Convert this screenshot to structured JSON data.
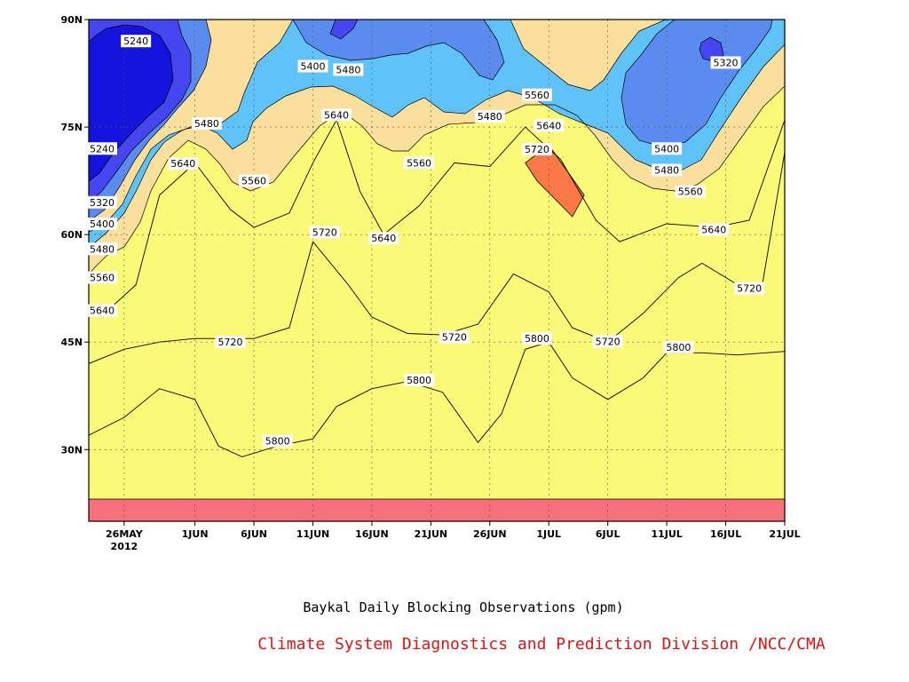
{
  "chart_data": {
    "type": "heatmap",
    "title": "Baykal Daily Blocking Observations (gpm)",
    "credit": "Climate System Diagnostics and Prediction Division /NCC/CMA",
    "x_axis": {
      "type": "date",
      "range": [
        "2012-05-23",
        "2012-07-21"
      ],
      "ticks": [
        {
          "date": "2012-05-26",
          "label": "26MAY",
          "sublabel": "2012"
        },
        {
          "date": "2012-06-01",
          "label": "1JUN"
        },
        {
          "date": "2012-06-06",
          "label": "6JUN"
        },
        {
          "date": "2012-06-11",
          "label": "11JUN"
        },
        {
          "date": "2012-06-16",
          "label": "16JUN"
        },
        {
          "date": "2012-06-21",
          "label": "21JUN"
        },
        {
          "date": "2012-06-26",
          "label": "26JUN"
        },
        {
          "date": "2012-07-01",
          "label": "1JUL"
        },
        {
          "date": "2012-07-06",
          "label": "6JUL"
        },
        {
          "date": "2012-07-11",
          "label": "11JUL"
        },
        {
          "date": "2012-07-16",
          "label": "16JUL"
        },
        {
          "date": "2012-07-21",
          "label": "21JUL"
        }
      ]
    },
    "y_axis": {
      "range": [
        20,
        90
      ],
      "ticks": [
        {
          "value": 30,
          "label": "30N"
        },
        {
          "value": 45,
          "label": "45N"
        },
        {
          "value": 60,
          "label": "60N"
        },
        {
          "value": 75,
          "label": "75N"
        },
        {
          "value": 90,
          "label": "90N"
        }
      ]
    },
    "grid": true,
    "contour_levels": [
      5240,
      5320,
      5400,
      5480,
      5560,
      5640,
      5720,
      5800
    ],
    "colors": {
      "below_5240": "#1414dc",
      "5240_5320": "#4646f0",
      "5320_5400": "#5a8cf0",
      "5400_5480": "#5fc3fa",
      "5480_5560": "#fafa78",
      "5560_5640": "#fae09c",
      "5640_5720": "#faa06e",
      "5720_5800": "#fa7846",
      "above_5800": "#f5707a"
    },
    "contours": [
      {
        "level": 5800,
        "points": [
          [
            "2012-05-23",
            32.0
          ],
          [
            "2012-05-26",
            34.5
          ],
          [
            "2012-05-29",
            38.5
          ],
          [
            "2012-06-01",
            37.0
          ],
          [
            "2012-06-03",
            30.5
          ],
          [
            "2012-06-05",
            29.0
          ],
          [
            "2012-06-08",
            30.5
          ],
          [
            "2012-06-11",
            31.5
          ],
          [
            "2012-06-13",
            36.0
          ],
          [
            "2012-06-16",
            38.5
          ],
          [
            "2012-06-19",
            39.5
          ],
          [
            "2012-06-22",
            38.0
          ],
          [
            "2012-06-25",
            31.0
          ],
          [
            "2012-06-27",
            35.0
          ],
          [
            "2012-06-29",
            44.0
          ],
          [
            "2012-07-01",
            45.0
          ],
          [
            "2012-07-03",
            40.0
          ],
          [
            "2012-07-06",
            37.0
          ],
          [
            "2012-07-09",
            40.0
          ],
          [
            "2012-07-11",
            43.5
          ],
          [
            "2012-07-14",
            43.5
          ],
          [
            "2012-07-17",
            43.2
          ],
          [
            "2012-07-21",
            43.7
          ]
        ],
        "labels": [
          {
            "date": "2012-06-08",
            "lat": 31.2,
            "text": "5800"
          },
          {
            "date": "2012-06-20",
            "lat": 39.7,
            "text": "5800"
          },
          {
            "date": "2012-06-30",
            "lat": 45.5,
            "text": "5800"
          },
          {
            "date": "2012-07-12",
            "lat": 44.3,
            "text": "5800"
          }
        ]
      },
      {
        "level": 5720,
        "points": [
          [
            "2012-05-23",
            42.0
          ],
          [
            "2012-05-26",
            44.0
          ],
          [
            "2012-05-29",
            45.0
          ],
          [
            "2012-06-01",
            45.5
          ],
          [
            "2012-06-06",
            45.5
          ],
          [
            "2012-06-09",
            47.0
          ],
          [
            "2012-06-11",
            59.0
          ],
          [
            "2012-06-14",
            53.0
          ],
          [
            "2012-06-16",
            48.5
          ],
          [
            "2012-06-19",
            46.2
          ],
          [
            "2012-06-22",
            46.0
          ],
          [
            "2012-06-25",
            47.5
          ],
          [
            "2012-06-28",
            54.5
          ],
          [
            "2012-07-01",
            52.0
          ],
          [
            "2012-07-03",
            47.0
          ],
          [
            "2012-07-06",
            45.0
          ],
          [
            "2012-07-09",
            49.0
          ],
          [
            "2012-07-12",
            54.0
          ],
          [
            "2012-07-14",
            56.0
          ],
          [
            "2012-07-17",
            53.0
          ],
          [
            "2012-07-19",
            52.0
          ],
          [
            "2012-07-21",
            71.5
          ]
        ],
        "labels": [
          {
            "date": "2012-06-04",
            "lat": 45.0,
            "text": "5720"
          },
          {
            "date": "2012-06-12",
            "lat": 60.3,
            "text": "5720"
          },
          {
            "date": "2012-06-23",
            "lat": 45.7,
            "text": "5720"
          },
          {
            "date": "2012-07-06",
            "lat": 45.1,
            "text": "5720"
          },
          {
            "date": "2012-07-18",
            "lat": 52.5,
            "text": "5720"
          }
        ]
      },
      {
        "level": 5640,
        "points": [
          [
            "2012-05-23",
            49.0
          ],
          [
            "2012-05-25",
            50.0
          ],
          [
            "2012-05-27",
            53.0
          ],
          [
            "2012-05-29",
            65.5
          ],
          [
            "2012-06-01",
            70.0
          ],
          [
            "2012-06-04",
            63.5
          ],
          [
            "2012-06-06",
            61.0
          ],
          [
            "2012-06-09",
            63.0
          ],
          [
            "2012-06-11",
            70.0
          ],
          [
            "2012-06-13",
            76.0
          ],
          [
            "2012-06-15",
            66.0
          ],
          [
            "2012-06-17",
            60.0
          ],
          [
            "2012-06-20",
            64.0
          ],
          [
            "2012-06-23",
            70.0
          ],
          [
            "2012-06-26",
            69.5
          ],
          [
            "2012-06-29",
            75.0
          ],
          [
            "2012-07-02",
            70.5
          ],
          [
            "2012-07-05",
            62.0
          ],
          [
            "2012-07-07",
            59.0
          ],
          [
            "2012-07-11",
            61.5
          ],
          [
            "2012-07-15",
            61.0
          ],
          [
            "2012-07-18",
            62.0
          ],
          [
            "2012-07-21",
            76.0
          ]
        ],
        "labels": [
          {
            "date": "2012-05-24",
            "lat": 49.4,
            "text": "5640"
          },
          {
            "date": "2012-05-31",
            "lat": 69.9,
            "text": "5640"
          },
          {
            "date": "2012-06-13",
            "lat": 76.7,
            "text": "5640"
          },
          {
            "date": "2012-06-17",
            "lat": 59.5,
            "text": "5640"
          },
          {
            "date": "2012-07-01",
            "lat": 75.2,
            "text": "5640"
          },
          {
            "date": "2012-07-15",
            "lat": 60.7,
            "text": "5640"
          }
        ]
      },
      {
        "level": 5720,
        "points": [
          [
            "2012-06-29",
            70.0
          ],
          [
            "2012-07-01",
            72.5
          ],
          [
            "2012-07-04",
            65.5
          ],
          [
            "2012-07-03",
            62.5
          ],
          [
            "2012-06-30",
            67.5
          ]
        ],
        "closed": true,
        "labels": [
          {
            "date": "2012-06-30",
            "lat": 71.9,
            "text": "5720"
          }
        ]
      }
    ],
    "labels_only": [
      {
        "date": "2012-05-27",
        "lat": 87.0,
        "text": "5240"
      },
      {
        "date": "2012-05-23",
        "lat": 72.0,
        "text": "5240"
      },
      {
        "date": "2012-05-23",
        "lat": 64.5,
        "text": "5320"
      },
      {
        "date": "2012-05-23",
        "lat": 61.5,
        "text": "5400"
      },
      {
        "date": "2012-05-23",
        "lat": 58.0,
        "text": "5480"
      },
      {
        "date": "2012-05-23",
        "lat": 54.0,
        "text": "5560"
      },
      {
        "date": "2012-06-02",
        "lat": 75.5,
        "text": "5480"
      },
      {
        "date": "2012-06-11",
        "lat": 83.5,
        "text": "5400"
      },
      {
        "date": "2012-06-14",
        "lat": 83.0,
        "text": "5480"
      },
      {
        "date": "2012-06-06",
        "lat": 67.5,
        "text": "5560"
      },
      {
        "date": "2012-06-20",
        "lat": 70.0,
        "text": "5560"
      },
      {
        "date": "2012-06-26",
        "lat": 76.5,
        "text": "5480"
      },
      {
        "date": "2012-06-30",
        "lat": 79.5,
        "text": "5560"
      },
      {
        "date": "2012-07-11",
        "lat": 72.0,
        "text": "5400"
      },
      {
        "date": "2012-07-11",
        "lat": 69.0,
        "text": "5480"
      },
      {
        "date": "2012-07-13",
        "lat": 66.0,
        "text": "5560"
      },
      {
        "date": "2012-07-16",
        "lat": 84.0,
        "text": "5320"
      }
    ]
  }
}
